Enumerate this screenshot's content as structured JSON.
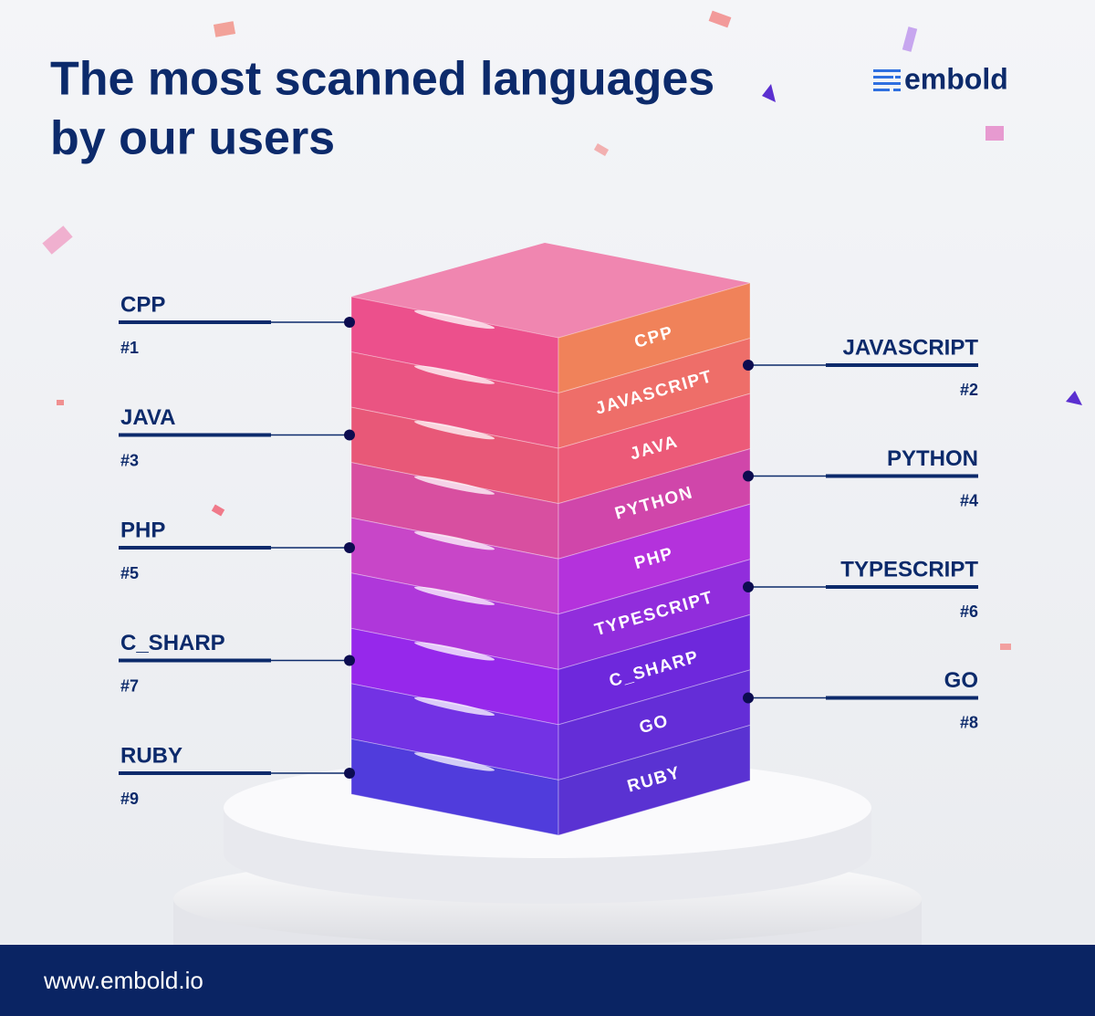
{
  "header": {
    "title": [
      "The most scanned languages",
      "by our users"
    ],
    "logo": "embold"
  },
  "languages": [
    {
      "name": "CPP",
      "rank": "#1"
    },
    {
      "name": "JAVASCRIPT",
      "rank": "#2"
    },
    {
      "name": "JAVA",
      "rank": "#3"
    },
    {
      "name": "PYTHON",
      "rank": "#4"
    },
    {
      "name": "PHP",
      "rank": "#5"
    },
    {
      "name": "TYPESCRIPT",
      "rank": "#6"
    },
    {
      "name": "C_SHARP",
      "rank": "#7"
    },
    {
      "name": "GO",
      "rank": "#8"
    },
    {
      "name": "RUBY",
      "rank": "#9"
    }
  ],
  "footer": {
    "url": "www.embold.io"
  }
}
